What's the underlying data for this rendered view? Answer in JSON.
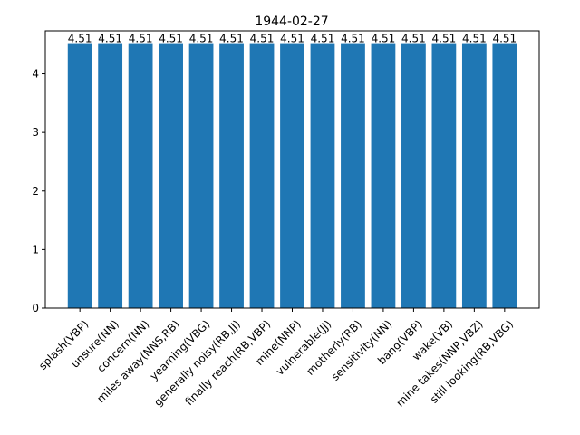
{
  "chart_data": {
    "type": "bar",
    "title": "1944-02-27",
    "xlabel": "",
    "ylabel": "",
    "categories": [
      "splash(VBP)",
      "unsure(NN)",
      "concern(NN)",
      "miles away(NNS,RB)",
      "yearning(VBG)",
      "generally noisy(RB,JJ)",
      "finally reach(RB,VBP)",
      "mine(NNP)",
      "vulnerable(JJ)",
      "motherly(RB)",
      "sensitivity(NN)",
      "bang(VBP)",
      "wake(VB)",
      "mine takes(NNP,VBZ)",
      "still looking(RB,VBG)"
    ],
    "values": [
      4.51,
      4.51,
      4.51,
      4.51,
      4.51,
      4.51,
      4.51,
      4.51,
      4.51,
      4.51,
      4.51,
      4.51,
      4.51,
      4.51,
      4.51
    ],
    "value_labels": [
      "4.51",
      "4.51",
      "4.51",
      "4.51",
      "4.51",
      "4.51",
      "4.51",
      "4.51",
      "4.51",
      "4.51",
      "4.51",
      "4.51",
      "4.51",
      "4.51",
      "4.51"
    ],
    "yticks": [
      0,
      1,
      2,
      3,
      4
    ],
    "ylim": [
      0,
      4.7355
    ],
    "bar_color": "#1f77b4",
    "grid": false,
    "legend": "none"
  }
}
